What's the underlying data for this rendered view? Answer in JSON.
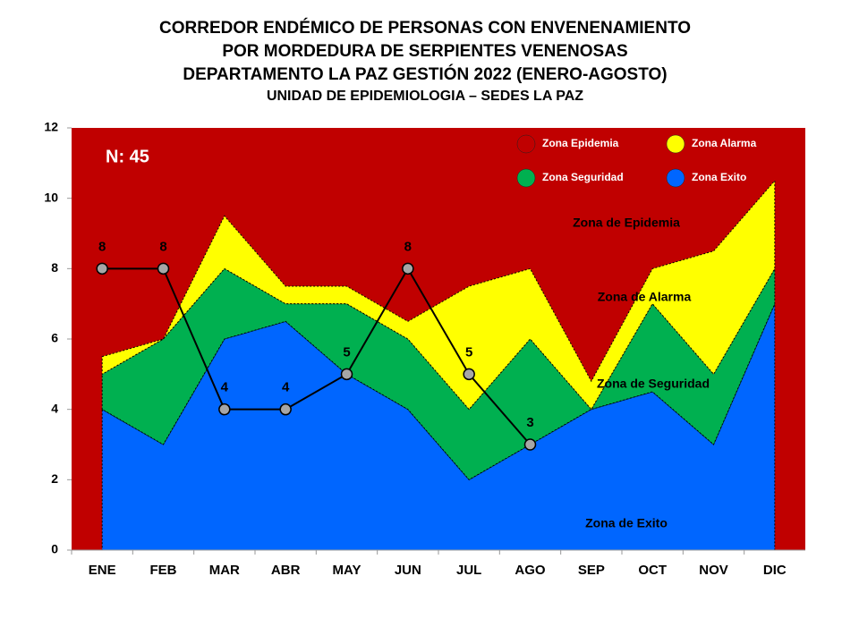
{
  "chart_data": {
    "type": "corridor",
    "title": [
      "CORREDOR ENDÉMICO DE PERSONAS CON ENVENENAMIENTO",
      "POR MORDEDURA  DE SERPIENTES VENENOSAS",
      "DEPARTAMENTO  LA PAZ GESTIÓN 2022 (ENERO-AGOSTO)"
    ],
    "subtitle": "UNIDAD DE EPIDEMIOLOGIA – SEDES LA PAZ",
    "categories": [
      "ENE",
      "FEB",
      "MAR",
      "ABR",
      "MAY",
      "JUN",
      "JUL",
      "AGO",
      "SEP",
      "OCT",
      "NOV",
      "DIC"
    ],
    "epidemic_zone": {
      "name": "Zona Epidemia",
      "color": "#c00000"
    },
    "series": [
      {
        "name": "Zona Alarma",
        "color": "#ffff00",
        "values": [
          0.5,
          0,
          1.5,
          0.5,
          0.5,
          0.5,
          3.5,
          2,
          0.8,
          1,
          3.5,
          2.5
        ]
      },
      {
        "name": "Zona Seguridad",
        "color": "#00b050",
        "values": [
          1,
          3,
          2,
          0.5,
          2,
          2,
          2,
          3,
          0,
          2.5,
          2,
          1
        ]
      },
      {
        "name": "Zona Exito",
        "color": "#0066ff",
        "values": [
          4,
          3,
          6,
          6.5,
          5,
          4,
          2,
          3,
          4,
          4.5,
          3,
          7
        ]
      }
    ],
    "cases": {
      "values": [
        8,
        8,
        4,
        4,
        5,
        8,
        5,
        3,
        null,
        null,
        null,
        null
      ],
      "color": "#000000",
      "marker_color": "#a6a6a6"
    },
    "annotations": [
      "N: 45",
      "Zona de  Epidemia",
      "Zona de Alarma",
      "Zona de Seguridad",
      "Zona de Exito"
    ],
    "ylim": [
      0,
      12
    ],
    "yticks": [
      0,
      2,
      4,
      6,
      8,
      10,
      12
    ]
  }
}
